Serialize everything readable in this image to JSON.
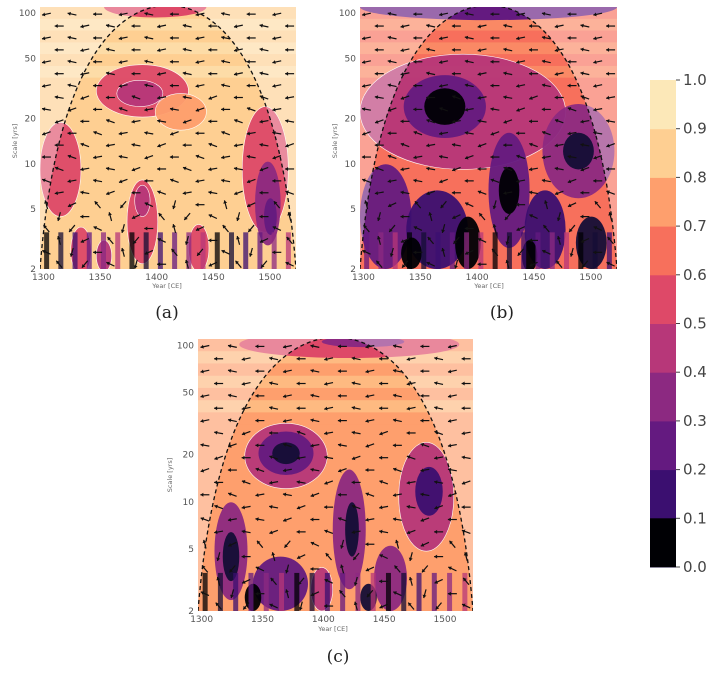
{
  "colors": {
    "levels": [
      "#000004",
      "#140e36",
      "#3b0f70",
      "#641a80",
      "#8c2981",
      "#b73779",
      "#de4968",
      "#f7705c",
      "#fe9f6d",
      "#fecf92",
      "#fce8b8"
    ],
    "contour": "#ffffff",
    "cone": "#111111",
    "arrow": "#111111"
  },
  "chart_data": [
    {
      "type": "heatmap",
      "caption": "(a)",
      "xlabel": "Year [CE]",
      "ylabel": "Scale [yrs]",
      "x_ticks": [
        "1300",
        "1350",
        "1400",
        "1450",
        "1500"
      ],
      "y_ticks": [
        "2",
        "5",
        "10",
        "20",
        "50",
        "100"
      ],
      "xlim": [
        1297,
        1523
      ],
      "ylim": [
        2,
        110
      ],
      "y_scale": "log",
      "cone_of_influence": true,
      "phase_arrows": true
    },
    {
      "type": "heatmap",
      "caption": "(b)",
      "xlabel": "Year [CE]",
      "ylabel": "Scale [yrs]",
      "x_ticks": [
        "1300",
        "1350",
        "1400",
        "1450",
        "1500"
      ],
      "y_ticks": [
        "2",
        "5",
        "10",
        "20",
        "50",
        "100"
      ],
      "xlim": [
        1297,
        1523
      ],
      "ylim": [
        2,
        110
      ],
      "y_scale": "log",
      "cone_of_influence": true,
      "phase_arrows": true
    },
    {
      "type": "heatmap",
      "caption": "(c)",
      "xlabel": "Year [CE]",
      "ylabel": "Scale [yrs]",
      "x_ticks": [
        "1300",
        "1350",
        "1400",
        "1450",
        "1500"
      ],
      "y_ticks": [
        "2",
        "5",
        "10",
        "20",
        "50",
        "100"
      ],
      "xlim": [
        1297,
        1523
      ],
      "ylim": [
        2,
        110
      ],
      "y_scale": "log",
      "cone_of_influence": true,
      "phase_arrows": true
    }
  ],
  "colorbar": {
    "ticks": [
      "0.0",
      "0.1",
      "0.2",
      "0.3",
      "0.4",
      "0.5",
      "0.6",
      "0.7",
      "0.8",
      "0.9",
      "1.0"
    ],
    "range": [
      0,
      1
    ]
  }
}
